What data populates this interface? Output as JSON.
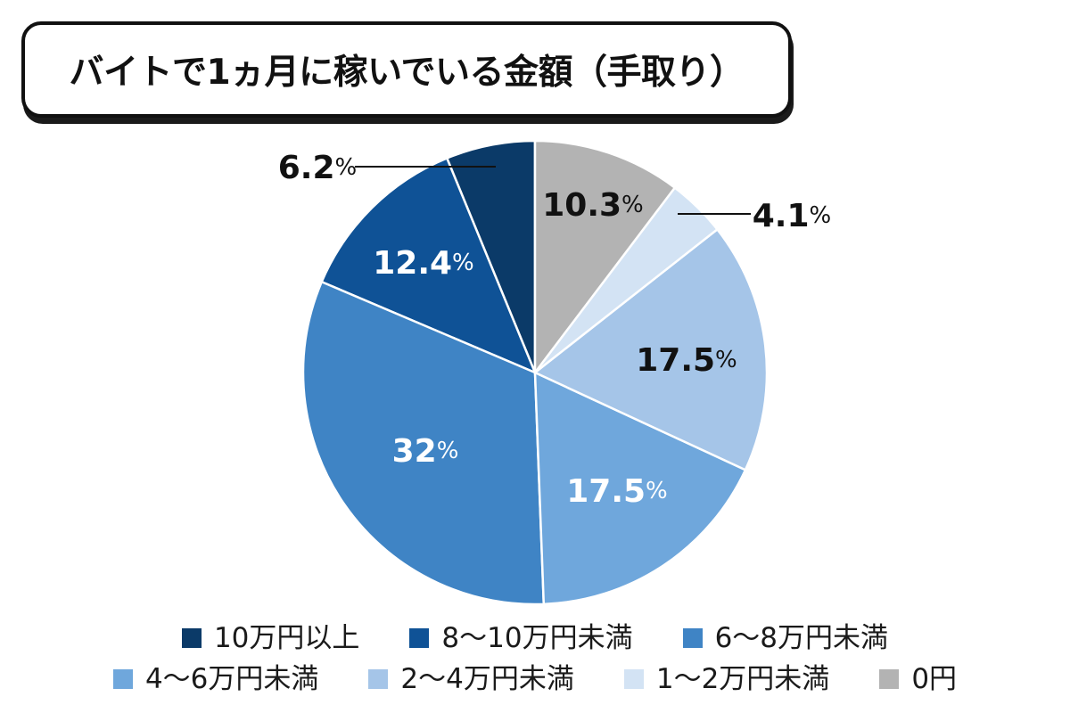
{
  "chart_data": {
    "type": "pie",
    "title": "バイトで1ヵ月に稼いでいる金額（手取り）",
    "value_suffix": "%",
    "start": "top",
    "direction": "counterclockwise",
    "legend_placement": "bottom",
    "slices": [
      {
        "category": "10万円以上",
        "value": 6.2,
        "color": "#0b3a68"
      },
      {
        "category": "8〜10万円未満",
        "value": 12.4,
        "color": "#0f5296"
      },
      {
        "category": "6〜8万円未満",
        "value": 32,
        "color": "#3f84c5"
      },
      {
        "category": "4〜6万円未満",
        "value": 17.5,
        "color": "#6fa7dc"
      },
      {
        "category": "2〜4万円未満",
        "value": 17.5,
        "color": "#a5c5e8"
      },
      {
        "category": "1〜2万円未満",
        "value": 4.1,
        "color": "#d3e3f4"
      },
      {
        "category": "0円",
        "value": 10.3,
        "color": "#b3b3b3"
      }
    ]
  }
}
